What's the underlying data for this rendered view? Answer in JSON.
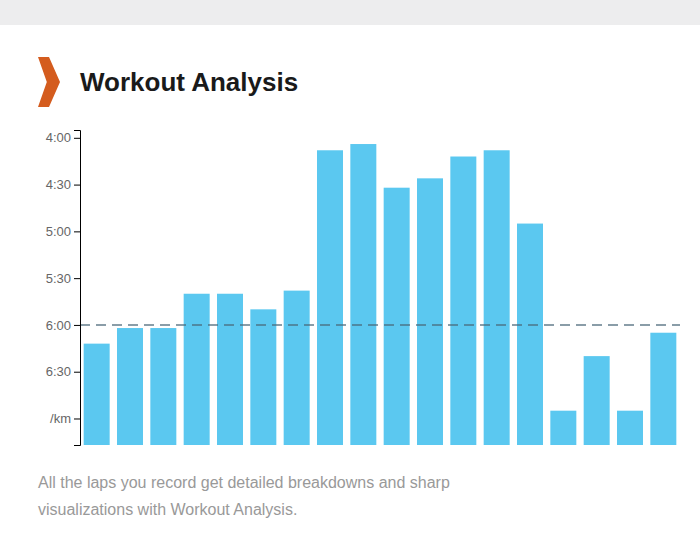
{
  "chart_data": {
    "type": "bar",
    "title": "Workout Analysis",
    "subtitle": "All the laps you record get detailed breakdowns and sharp\nvisualizations with Workout Analysis.",
    "categories": [
      null,
      null,
      null,
      null,
      null,
      null,
      null,
      null,
      null,
      null,
      null,
      null,
      null,
      null,
      null,
      null,
      null,
      null
    ],
    "values": [
      372,
      362,
      362,
      340,
      340,
      350,
      338,
      248,
      244,
      272,
      266,
      252,
      248,
      295,
      415,
      380,
      415,
      365
    ],
    "color": "#5bc8f0",
    "reference_line": 360,
    "ylim": [
      437,
      235
    ],
    "yticks": [
      {
        "value": 240,
        "label": "4:00"
      },
      {
        "value": 270,
        "label": "4:30"
      },
      {
        "value": 300,
        "label": "5:00"
      },
      {
        "value": 330,
        "label": "5:30"
      },
      {
        "value": 360,
        "label": "6:00"
      },
      {
        "value": 390,
        "label": "6:30"
      },
      {
        "value": 420,
        "label": "/km"
      }
    ],
    "grid": false,
    "tick_labels": "y"
  }
}
